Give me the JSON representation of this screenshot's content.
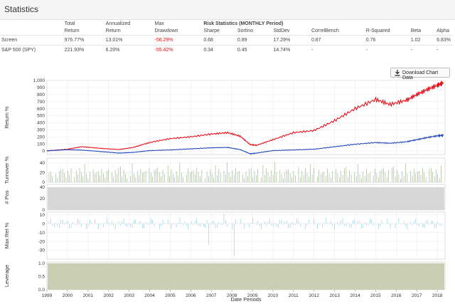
{
  "header": {
    "title": "Statistics"
  },
  "stats": {
    "group_headers": {
      "total": "Total",
      "annualized": "Annualized",
      "max": "Max",
      "risk": "Risk Statistics (MONTHLY Period)"
    },
    "columns": [
      "Return",
      "Return",
      "Drawdown",
      "Sharpe",
      "Sortino",
      "StdDev",
      "CorrelBench",
      "R-Squared",
      "Beta",
      "Alpha"
    ],
    "rows": [
      {
        "name": "Screen",
        "values": [
          "976.77%",
          "13.01%",
          "-56.29%",
          "0.68",
          "0.89",
          "17.29%",
          "0.87",
          "0.76",
          "1.02",
          "6.83%"
        ]
      },
      {
        "name": "S&P 500 (SPY)",
        "values": [
          "221.93%",
          "6.20%",
          "-55.42%",
          "0.34",
          "0.45",
          "14.74%",
          "-",
          "-",
          "-",
          "-"
        ]
      }
    ]
  },
  "download_button": {
    "label": "Download Chart Data",
    "icon": "download-icon"
  },
  "chart_data": [
    {
      "type": "line",
      "ylabel": "Return %",
      "ylim": [
        -50,
        1000
      ],
      "yticks": [
        "1,000",
        "900",
        "800",
        "700",
        "600",
        "500",
        "400",
        "300",
        "200",
        "100",
        "0"
      ],
      "series": [
        {
          "color": "#e8101c",
          "x": [
            1999.0,
            2000.0,
            2000.7,
            2001.5,
            2002.5,
            2003.2,
            2004.0,
            2005.0,
            2006.0,
            2007.0,
            2007.8,
            2008.4,
            2008.9,
            2009.2,
            2010.0,
            2011.0,
            2012.0,
            2013.0,
            2014.0,
            2015.0,
            2015.7,
            2016.5,
            2017.0,
            2017.5,
            2018.0,
            2018.3
          ],
          "y": [
            2,
            25,
            60,
            40,
            20,
            50,
            120,
            175,
            200,
            240,
            260,
            210,
            90,
            80,
            160,
            260,
            290,
            430,
            600,
            730,
            660,
            720,
            800,
            870,
            930,
            970
          ]
        },
        {
          "color": "#2448b8",
          "x": [
            1999.0,
            2000.0,
            2000.7,
            2001.5,
            2002.5,
            2003.2,
            2004.0,
            2005.0,
            2006.0,
            2007.0,
            2007.8,
            2008.4,
            2008.9,
            2009.2,
            2010.0,
            2011.0,
            2012.0,
            2013.0,
            2014.0,
            2015.0,
            2015.7,
            2016.5,
            2017.0,
            2017.5,
            2018.0,
            2018.3
          ],
          "y": [
            2,
            18,
            12,
            -5,
            -30,
            -20,
            5,
            15,
            30,
            45,
            50,
            20,
            -40,
            -30,
            5,
            15,
            25,
            60,
            95,
            120,
            110,
            130,
            160,
            190,
            215,
            222
          ]
        }
      ]
    },
    {
      "type": "bar",
      "ylabel": "Turnover %",
      "ylim": [
        0,
        50
      ],
      "yticks": [
        "40",
        "20",
        "0"
      ],
      "color": "#8aa876"
    },
    {
      "type": "area",
      "ylabel": "# Pos",
      "ylim": [
        0,
        45
      ],
      "yticks": [
        "40",
        "20",
        "0"
      ],
      "value": 40,
      "fill": "#d6d6d6"
    },
    {
      "type": "bar",
      "ylabel": "Max Ret %",
      "ylim": [
        -40,
        13
      ],
      "yticks": [
        "10",
        "0",
        "-10",
        "-20",
        "-30"
      ],
      "color": "#7cc6d6"
    },
    {
      "type": "area",
      "ylabel": "Leverage",
      "ylim": [
        0,
        1.05
      ],
      "yticks": [
        "1.0",
        "0.5",
        "0.0"
      ],
      "value": 1.0,
      "fill": "#c9cdb1"
    }
  ],
  "x_axis": {
    "label": "Date Periods",
    "ticks": [
      "1999",
      "2000",
      "2001",
      "2002",
      "2003",
      "2004",
      "2005",
      "2006",
      "2007",
      "2008",
      "2009",
      "2010",
      "2011",
      "2012",
      "2013",
      "2014",
      "2015",
      "2016",
      "2017",
      "2018",
      "2"
    ]
  }
}
